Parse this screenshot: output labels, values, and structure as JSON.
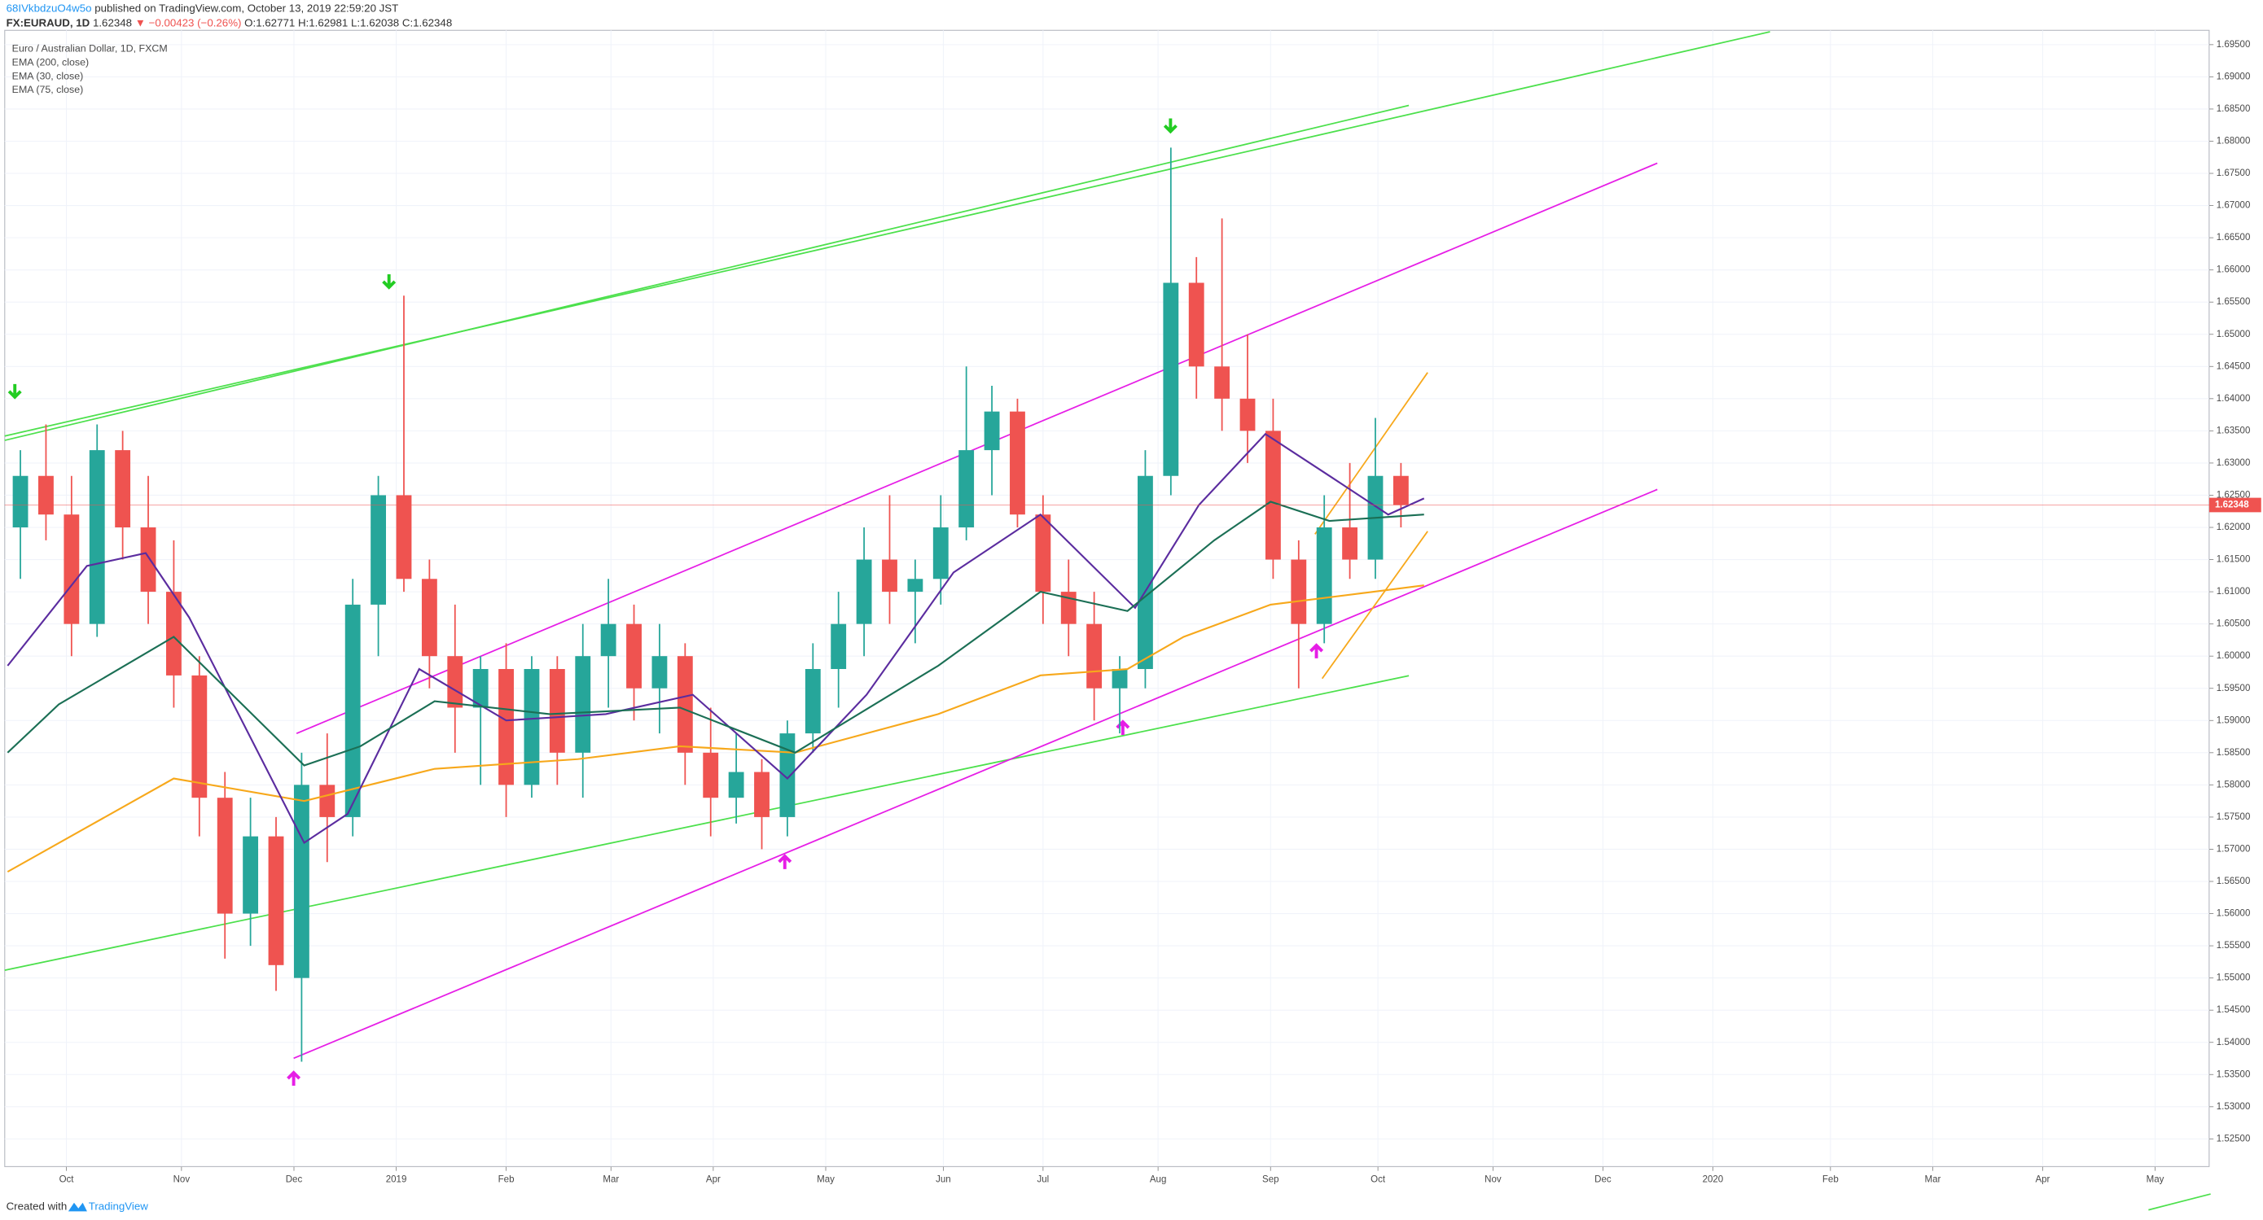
{
  "header": {
    "author": "68IVkbdzuO4w5o",
    "published": "published on TradingView.com, October 13, 2019 22:59:20 JST",
    "symbol": "FX:EURAUD, 1D",
    "price": "1.62348",
    "change": "▼ −0.00423 (−0.26%)",
    "ohlc": "O:1.62771 H:1.62981 L:1.62038 C:1.62348"
  },
  "footer": {
    "created": "Created with",
    "brand": "TradingView"
  },
  "chart_data": {
    "type": "candlestick",
    "title": "Euro / Australian Dollar, 1D, FXCM",
    "up_color": "#26a69a",
    "down_color": "#ef5350",
    "candles": {
      "x": [
        0.5,
        1.5,
        2.5,
        3.5,
        4.5,
        5.5,
        6.5,
        7.5,
        8.5,
        9.5,
        10.5,
        11.5,
        12.5,
        13.5,
        14.5,
        15.5,
        16.5,
        17.5,
        18.5,
        19.5,
        20.5,
        21.5,
        22.5,
        23.5,
        24.5,
        25.5,
        26.5,
        27.5,
        28.5,
        29.5,
        30.5,
        31.5,
        32.5,
        33.5,
        34.5,
        35.5,
        36.5,
        37.5,
        38.5,
        39.5,
        40.5,
        41.5,
        42.5,
        43.5,
        44.5,
        45.5,
        46.5,
        47.5,
        48.5,
        49.5,
        50.5,
        51.5,
        52.5,
        53.5,
        54.5
      ],
      "open": [
        1.62,
        1.628,
        1.622,
        1.605,
        1.632,
        1.62,
        1.61,
        1.597,
        1.578,
        1.56,
        1.572,
        1.55,
        1.58,
        1.575,
        1.608,
        1.625,
        1.612,
        1.6,
        1.592,
        1.598,
        1.58,
        1.598,
        1.585,
        1.6,
        1.605,
        1.595,
        1.6,
        1.585,
        1.578,
        1.582,
        1.575,
        1.588,
        1.598,
        1.605,
        1.615,
        1.61,
        1.612,
        1.62,
        1.632,
        1.638,
        1.622,
        1.61,
        1.605,
        1.595,
        1.598,
        1.628,
        1.658,
        1.645,
        1.64,
        1.635,
        1.615,
        1.605,
        1.62,
        1.615,
        1.628
      ],
      "high": [
        1.632,
        1.636,
        1.628,
        1.636,
        1.635,
        1.628,
        1.618,
        1.6,
        1.582,
        1.578,
        1.575,
        1.585,
        1.588,
        1.612,
        1.628,
        1.656,
        1.615,
        1.608,
        1.6,
        1.602,
        1.6,
        1.6,
        1.605,
        1.612,
        1.608,
        1.605,
        1.602,
        1.592,
        1.588,
        1.584,
        1.59,
        1.602,
        1.61,
        1.62,
        1.625,
        1.615,
        1.625,
        1.645,
        1.642,
        1.64,
        1.625,
        1.615,
        1.61,
        1.6,
        1.632,
        1.679,
        1.662,
        1.668,
        1.65,
        1.64,
        1.618,
        1.625,
        1.63,
        1.637,
        1.63
      ],
      "low": [
        1.612,
        1.618,
        1.6,
        1.603,
        1.615,
        1.605,
        1.592,
        1.572,
        1.553,
        1.555,
        1.548,
        1.537,
        1.568,
        1.572,
        1.6,
        1.61,
        1.595,
        1.585,
        1.58,
        1.575,
        1.578,
        1.58,
        1.578,
        1.592,
        1.59,
        1.588,
        1.58,
        1.572,
        1.574,
        1.57,
        1.572,
        1.585,
        1.592,
        1.6,
        1.605,
        1.602,
        1.608,
        1.618,
        1.625,
        1.62,
        1.605,
        1.6,
        1.59,
        1.588,
        1.595,
        1.625,
        1.64,
        1.635,
        1.63,
        1.612,
        1.595,
        1.602,
        1.612,
        1.612,
        1.62
      ],
      "close": [
        1.628,
        1.622,
        1.605,
        1.632,
        1.62,
        1.61,
        1.597,
        1.578,
        1.56,
        1.572,
        1.552,
        1.58,
        1.575,
        1.608,
        1.625,
        1.612,
        1.6,
        1.592,
        1.598,
        1.58,
        1.598,
        1.585,
        1.6,
        1.605,
        1.595,
        1.6,
        1.585,
        1.578,
        1.582,
        1.575,
        1.588,
        1.598,
        1.605,
        1.615,
        1.61,
        1.612,
        1.62,
        1.632,
        1.638,
        1.622,
        1.61,
        1.605,
        1.595,
        1.598,
        1.628,
        1.658,
        1.645,
        1.64,
        1.635,
        1.615,
        1.605,
        1.62,
        1.615,
        1.628,
        1.62348
      ]
    },
    "series": [
      {
        "name": "EMA (200, close)",
        "color": "#f7a81b",
        "x": [
          0,
          6.5,
          11.6,
          16.7,
          22.3,
          26.3,
          30.8,
          36.4,
          40.4,
          43.8,
          46,
          49.4,
          53.4,
          55.4
        ],
        "values": [
          1.5665,
          1.581,
          1.5775,
          1.5825,
          1.584,
          1.586,
          1.585,
          1.591,
          1.597,
          1.598,
          1.603,
          1.608,
          1.61,
          1.611
        ]
      },
      {
        "name": "EMA (30, close)",
        "color": "#5b2c9f",
        "x": [
          0,
          3.1,
          5.4,
          7.1,
          11.6,
          13.3,
          16.1,
          19.5,
          23.4,
          26.8,
          30.5,
          33.6,
          37,
          40.4,
          44.1,
          46.6,
          49.2,
          51.7,
          54,
          55.4
        ],
        "values": [
          1.5985,
          1.614,
          1.616,
          1.606,
          1.571,
          1.5755,
          1.598,
          1.59,
          1.591,
          1.594,
          1.581,
          1.594,
          1.613,
          1.622,
          1.6075,
          1.6235,
          1.6345,
          1.628,
          1.622,
          1.6245
        ]
      },
      {
        "name": "EMA (75, close)",
        "color": "#1b6f55",
        "x": [
          0,
          2,
          6.5,
          11.6,
          13.8,
          16.7,
          21.2,
          26.3,
          30.8,
          36.4,
          40.4,
          43.8,
          47.2,
          49.4,
          51.7,
          55.4
        ],
        "values": [
          1.585,
          1.5925,
          1.603,
          1.583,
          1.586,
          1.593,
          1.591,
          1.592,
          1.585,
          1.5985,
          1.61,
          1.607,
          1.618,
          1.624,
          1.621,
          1.622
        ]
      }
    ],
    "last_price": {
      "value": 1.62348,
      "label": "1.62348"
    },
    "ylim": [
      1.5207,
      1.697
    ],
    "yticks": [
      {
        "value": 1.525,
        "label": "1.52500"
      },
      {
        "value": 1.53,
        "label": "1.53000"
      },
      {
        "value": 1.535,
        "label": "1.53500"
      },
      {
        "value": 1.54,
        "label": "1.54000"
      },
      {
        "value": 1.545,
        "label": "1.54500"
      },
      {
        "value": 1.55,
        "label": "1.55000"
      },
      {
        "value": 1.555,
        "label": "1.55500"
      },
      {
        "value": 1.56,
        "label": "1.56000"
      },
      {
        "value": 1.565,
        "label": "1.56500"
      },
      {
        "value": 1.57,
        "label": "1.57000"
      },
      {
        "value": 1.575,
        "label": "1.57500"
      },
      {
        "value": 1.58,
        "label": "1.58000"
      },
      {
        "value": 1.585,
        "label": "1.58500"
      },
      {
        "value": 1.59,
        "label": "1.59000"
      },
      {
        "value": 1.595,
        "label": "1.59500"
      },
      {
        "value": 1.6,
        "label": "1.60000"
      },
      {
        "value": 1.605,
        "label": "1.60500"
      },
      {
        "value": 1.61,
        "label": "1.61000"
      },
      {
        "value": 1.615,
        "label": "1.61500"
      },
      {
        "value": 1.62,
        "label": "1.62000"
      },
      {
        "value": 1.625,
        "label": "1.62500"
      },
      {
        "value": 1.63,
        "label": "1.63000"
      },
      {
        "value": 1.635,
        "label": "1.63500"
      },
      {
        "value": 1.64,
        "label": "1.64000"
      },
      {
        "value": 1.645,
        "label": "1.64500"
      },
      {
        "value": 1.65,
        "label": "1.65000"
      },
      {
        "value": 1.655,
        "label": "1.65500"
      },
      {
        "value": 1.66,
        "label": "1.66000"
      },
      {
        "value": 1.665,
        "label": "1.66500"
      },
      {
        "value": 1.67,
        "label": "1.67000"
      },
      {
        "value": 1.675,
        "label": "1.67500"
      },
      {
        "value": 1.68,
        "label": "1.68000"
      },
      {
        "value": 1.685,
        "label": "1.68500"
      },
      {
        "value": 1.69,
        "label": "1.69000"
      },
      {
        "value": 1.695,
        "label": "1.69500"
      }
    ],
    "xlim": [
      0,
      86
    ],
    "xticks": [
      {
        "value": 2.3,
        "label": "Oct"
      },
      {
        "value": 6.8,
        "label": "Nov"
      },
      {
        "value": 11.2,
        "label": "Dec"
      },
      {
        "value": 15.2,
        "label": "2019"
      },
      {
        "value": 19.5,
        "label": "Feb"
      },
      {
        "value": 23.6,
        "label": "Mar"
      },
      {
        "value": 27.6,
        "label": "Apr"
      },
      {
        "value": 32,
        "label": "May"
      },
      {
        "value": 36.6,
        "label": "Jun"
      },
      {
        "value": 40.5,
        "label": "Jul"
      },
      {
        "value": 45,
        "label": "Aug"
      },
      {
        "value": 49.4,
        "label": "Sep"
      },
      {
        "value": 53.6,
        "label": "Oct"
      },
      {
        "value": 58.1,
        "label": "Nov"
      },
      {
        "value": 62.4,
        "label": "Dec"
      },
      {
        "value": 66.7,
        "label": "2020"
      },
      {
        "value": 71.3,
        "label": "Feb"
      },
      {
        "value": 75.3,
        "label": "Mar"
      },
      {
        "value": 79.6,
        "label": "Apr"
      },
      {
        "value": 84,
        "label": "May"
      }
    ],
    "grid": true
  }
}
